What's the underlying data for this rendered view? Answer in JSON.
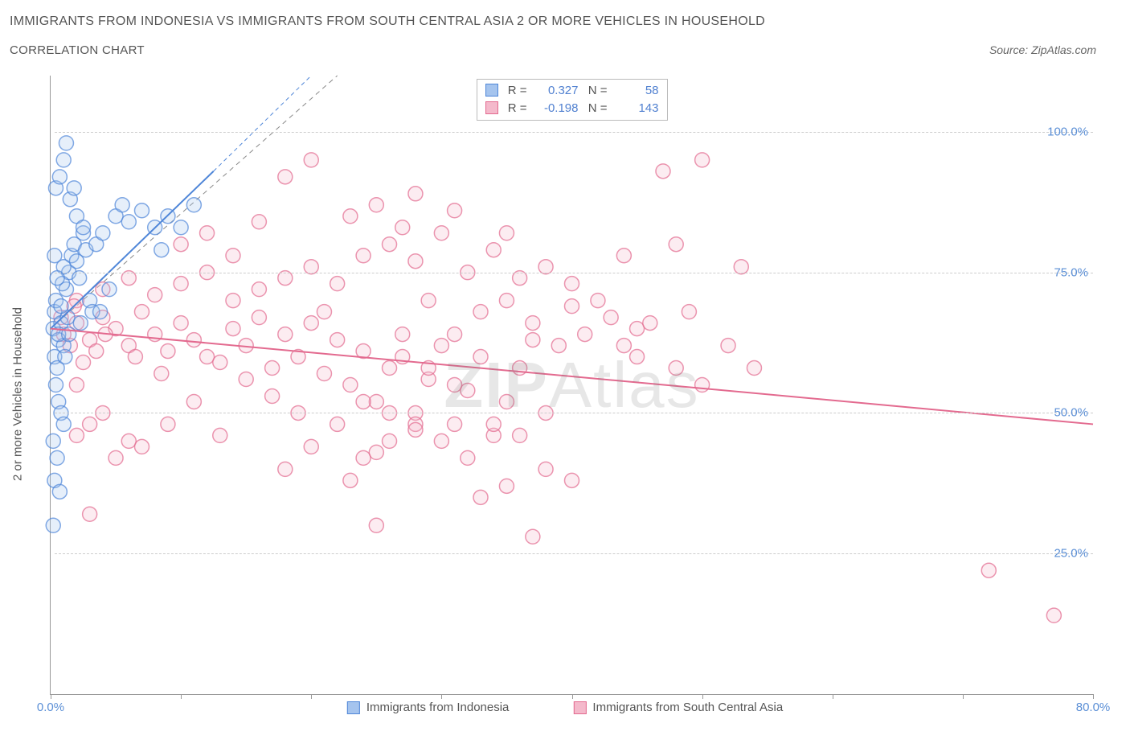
{
  "title": "IMMIGRANTS FROM INDONESIA VS IMMIGRANTS FROM SOUTH CENTRAL ASIA 2 OR MORE VEHICLES IN HOUSEHOLD",
  "subtitle": "CORRELATION CHART",
  "source": "Source: ZipAtlas.com",
  "watermark": {
    "part1": "ZIP",
    "part2": "Atlas"
  },
  "chart": {
    "type": "scatter",
    "y_axis_title": "2 or more Vehicles in Household",
    "xlim": [
      0,
      80
    ],
    "ylim": [
      0,
      110
    ],
    "x_ticks": [
      0,
      10,
      20,
      30,
      40,
      50,
      60,
      70,
      80
    ],
    "x_tick_labels": {
      "0": "0.0%",
      "80": "80.0%"
    },
    "y_grid": [
      25,
      50,
      75,
      100
    ],
    "y_tick_labels": {
      "25": "25.0%",
      "50": "50.0%",
      "75": "75.0%",
      "100": "100.0%"
    },
    "background_color": "#ffffff",
    "grid_color": "#cccccc",
    "axis_color": "#999999",
    "tick_label_color": "#5b8fd6",
    "axis_title_color": "#555555",
    "marker_radius": 9,
    "marker_stroke_width": 1.5,
    "marker_fill_opacity": 0.28,
    "trend_line_width": 2,
    "identity_line": {
      "show": true,
      "dash": "6 5",
      "color": "#888888",
      "width": 1,
      "from": [
        0,
        65
      ],
      "to": [
        22,
        110
      ]
    },
    "series": [
      {
        "name": "Immigrants from Indonesia",
        "stroke": "#4f86d8",
        "fill": "#a5c4ee",
        "R": "0.327",
        "N": "58",
        "trend": {
          "from": [
            0,
            65
          ],
          "to": [
            12.5,
            93
          ],
          "dashed_extend_to": [
            20,
            110
          ]
        },
        "points": [
          [
            0.2,
            65
          ],
          [
            0.3,
            68
          ],
          [
            0.4,
            70
          ],
          [
            0.6,
            63
          ],
          [
            0.3,
            60
          ],
          [
            0.8,
            66
          ],
          [
            1.0,
            62
          ],
          [
            0.5,
            58
          ],
          [
            1.2,
            72
          ],
          [
            1.4,
            75
          ],
          [
            1.6,
            78
          ],
          [
            1.8,
            80
          ],
          [
            2.0,
            77
          ],
          [
            2.2,
            74
          ],
          [
            2.5,
            82
          ],
          [
            2.7,
            79
          ],
          [
            3.0,
            70
          ],
          [
            3.2,
            68
          ],
          [
            0.4,
            55
          ],
          [
            0.6,
            52
          ],
          [
            0.8,
            50
          ],
          [
            1.0,
            48
          ],
          [
            0.2,
            45
          ],
          [
            0.5,
            42
          ],
          [
            0.3,
            38
          ],
          [
            0.7,
            36
          ],
          [
            0.2,
            30
          ],
          [
            1.0,
            95
          ],
          [
            1.2,
            98
          ],
          [
            1.5,
            88
          ],
          [
            1.8,
            90
          ],
          [
            2.0,
            85
          ],
          [
            2.5,
            83
          ],
          [
            3.5,
            80
          ],
          [
            4.0,
            82
          ],
          [
            5.0,
            85
          ],
          [
            5.5,
            87
          ],
          [
            6.0,
            84
          ],
          [
            7.0,
            86
          ],
          [
            8.0,
            83
          ],
          [
            9.0,
            85
          ],
          [
            10.0,
            83
          ],
          [
            11.0,
            87
          ],
          [
            8.5,
            79
          ],
          [
            4.5,
            72
          ],
          [
            3.8,
            68
          ],
          [
            0.9,
            73
          ],
          [
            1.3,
            67
          ],
          [
            0.6,
            64
          ],
          [
            1.1,
            60
          ],
          [
            2.3,
            66
          ],
          [
            0.4,
            90
          ],
          [
            0.7,
            92
          ],
          [
            1.0,
            76
          ],
          [
            0.3,
            78
          ],
          [
            0.5,
            74
          ],
          [
            1.4,
            64
          ],
          [
            0.8,
            69
          ]
        ]
      },
      {
        "name": "Immigrants from South Central Asia",
        "stroke": "#e36a8f",
        "fill": "#f4b9cb",
        "R": "-0.198",
        "N": "143",
        "trend": {
          "from": [
            0,
            65
          ],
          "to": [
            80,
            48
          ]
        },
        "points": [
          [
            1,
            64
          ],
          [
            2,
            66
          ],
          [
            3,
            63
          ],
          [
            4,
            67
          ],
          [
            5,
            65
          ],
          [
            6,
            62
          ],
          [
            7,
            68
          ],
          [
            8,
            64
          ],
          [
            9,
            61
          ],
          [
            10,
            66
          ],
          [
            11,
            63
          ],
          [
            12,
            60
          ],
          [
            13,
            59
          ],
          [
            14,
            65
          ],
          [
            15,
            62
          ],
          [
            16,
            67
          ],
          [
            17,
            58
          ],
          [
            18,
            64
          ],
          [
            19,
            60
          ],
          [
            20,
            66
          ],
          [
            21,
            57
          ],
          [
            22,
            63
          ],
          [
            23,
            55
          ],
          [
            24,
            61
          ],
          [
            25,
            52
          ],
          [
            26,
            58
          ],
          [
            27,
            64
          ],
          [
            28,
            50
          ],
          [
            29,
            56
          ],
          [
            30,
            62
          ],
          [
            31,
            48
          ],
          [
            32,
            54
          ],
          [
            33,
            60
          ],
          [
            34,
            46
          ],
          [
            35,
            52
          ],
          [
            36,
            58
          ],
          [
            37,
            63
          ],
          [
            38,
            50
          ],
          [
            2,
            70
          ],
          [
            4,
            72
          ],
          [
            6,
            74
          ],
          [
            8,
            71
          ],
          [
            10,
            73
          ],
          [
            12,
            75
          ],
          [
            14,
            70
          ],
          [
            16,
            72
          ],
          [
            18,
            74
          ],
          [
            20,
            76
          ],
          [
            22,
            73
          ],
          [
            24,
            78
          ],
          [
            26,
            80
          ],
          [
            28,
            77
          ],
          [
            30,
            82
          ],
          [
            32,
            75
          ],
          [
            34,
            79
          ],
          [
            36,
            74
          ],
          [
            38,
            76
          ],
          [
            40,
            73
          ],
          [
            42,
            70
          ],
          [
            44,
            78
          ],
          [
            23,
            85
          ],
          [
            25,
            87
          ],
          [
            28,
            89
          ],
          [
            18,
            92
          ],
          [
            20,
            95
          ],
          [
            27,
            83
          ],
          [
            31,
            86
          ],
          [
            35,
            82
          ],
          [
            47,
            93
          ],
          [
            50,
            95
          ],
          [
            40,
            69
          ],
          [
            43,
            67
          ],
          [
            45,
            65
          ],
          [
            33,
            68
          ],
          [
            37,
            66
          ],
          [
            2,
            55
          ],
          [
            4,
            50
          ],
          [
            6,
            45
          ],
          [
            3,
            48
          ],
          [
            5,
            42
          ],
          [
            18,
            40
          ],
          [
            25,
            43
          ],
          [
            30,
            45
          ],
          [
            23,
            38
          ],
          [
            28,
            48
          ],
          [
            32,
            42
          ],
          [
            35,
            37
          ],
          [
            38,
            40
          ],
          [
            33,
            35
          ],
          [
            37,
            28
          ],
          [
            40,
            38
          ],
          [
            25,
            30
          ],
          [
            45,
            60
          ],
          [
            48,
            58
          ],
          [
            50,
            55
          ],
          [
            53,
            76
          ],
          [
            48,
            80
          ],
          [
            72,
            22
          ],
          [
            77,
            14
          ],
          [
            35,
            70
          ],
          [
            1.5,
            62
          ],
          [
            2.5,
            59
          ],
          [
            3.5,
            61
          ],
          [
            0.8,
            67
          ],
          [
            1.8,
            69
          ],
          [
            4.2,
            64
          ],
          [
            6.5,
            60
          ],
          [
            8.5,
            57
          ],
          [
            2,
            46
          ],
          [
            3,
            32
          ],
          [
            10,
            80
          ],
          [
            12,
            82
          ],
          [
            14,
            78
          ],
          [
            16,
            84
          ],
          [
            15,
            56
          ],
          [
            17,
            53
          ],
          [
            19,
            50
          ],
          [
            13,
            46
          ],
          [
            11,
            52
          ],
          [
            9,
            48
          ],
          [
            7,
            44
          ],
          [
            21,
            68
          ],
          [
            29,
            70
          ],
          [
            31,
            64
          ],
          [
            39,
            62
          ],
          [
            41,
            64
          ],
          [
            44,
            62
          ],
          [
            46,
            66
          ],
          [
            49,
            68
          ],
          [
            52,
            62
          ],
          [
            54,
            58
          ],
          [
            27,
            60
          ],
          [
            29,
            58
          ],
          [
            31,
            55
          ],
          [
            24,
            52
          ],
          [
            26,
            50
          ],
          [
            28,
            47
          ],
          [
            20,
            44
          ],
          [
            22,
            48
          ],
          [
            24,
            42
          ],
          [
            26,
            45
          ],
          [
            34,
            48
          ],
          [
            36,
            46
          ]
        ]
      }
    ]
  },
  "legend": {
    "stat_labels": {
      "r": "R =",
      "n": "N ="
    }
  }
}
